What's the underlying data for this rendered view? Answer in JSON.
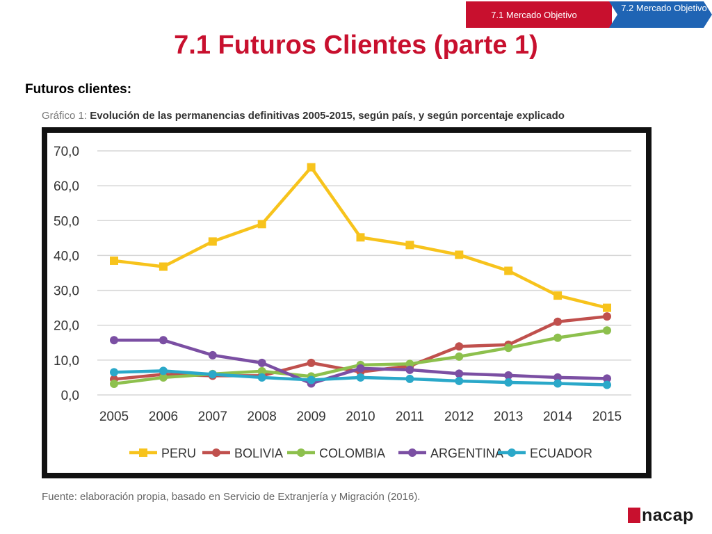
{
  "nav": {
    "active": "7.1  Mercado Objetivo",
    "next": "7.2 Mercado Objetivo"
  },
  "title": "7.1 Futuros Clientes (parte 1)",
  "subtitle": "Futuros clientes:",
  "chart_caption": {
    "label": "Gráfico 1:",
    "text": "Evolución de las permanencias definitivas 2005-2015, según país, y según porcentaje explicado"
  },
  "source": "Fuente: elaboración propia, basado en Servicio de Extranjería y Migración (2016).",
  "logo": {
    "text": "nacap"
  },
  "chart_data": {
    "type": "line",
    "title": "",
    "xlabel": "",
    "ylabel": "",
    "x": [
      "2005",
      "2006",
      "2007",
      "2008",
      "2009",
      "2010",
      "2011",
      "2012",
      "2013",
      "2014",
      "2015"
    ],
    "ylim": [
      0,
      70
    ],
    "yticks": [
      "0,0",
      "10,0",
      "20,0",
      "30,0",
      "40,0",
      "50,0",
      "60,0",
      "70,0"
    ],
    "grid": true,
    "legend_position": "bottom",
    "series": [
      {
        "name": "PERU",
        "color": "#f7c31c",
        "marker": "square",
        "values": [
          38.5,
          36.8,
          44.0,
          49.0,
          65.3,
          45.2,
          43.0,
          40.2,
          35.6,
          28.5,
          25.0
        ]
      },
      {
        "name": "BOLIVIA",
        "color": "#c0504d",
        "marker": "circle",
        "values": [
          4.5,
          5.9,
          5.5,
          5.5,
          9.2,
          6.6,
          8.3,
          13.9,
          14.4,
          21.0,
          22.5
        ]
      },
      {
        "name": "COLOMBIA",
        "color": "#8dc04d",
        "marker": "circle",
        "values": [
          3.2,
          5.0,
          6.0,
          6.8,
          5.3,
          8.6,
          8.9,
          11.0,
          13.5,
          16.4,
          18.5
        ]
      },
      {
        "name": "ARGENTINA",
        "color": "#7b4fa3",
        "marker": "circle",
        "values": [
          15.7,
          15.7,
          11.4,
          9.2,
          3.3,
          7.6,
          7.2,
          6.1,
          5.6,
          5.0,
          4.7
        ]
      },
      {
        "name": "ECUADOR",
        "color": "#2aa8c9",
        "marker": "circle",
        "values": [
          6.5,
          6.9,
          5.9,
          5.0,
          4.3,
          5.0,
          4.6,
          4.0,
          3.6,
          3.3,
          2.9
        ]
      }
    ]
  }
}
